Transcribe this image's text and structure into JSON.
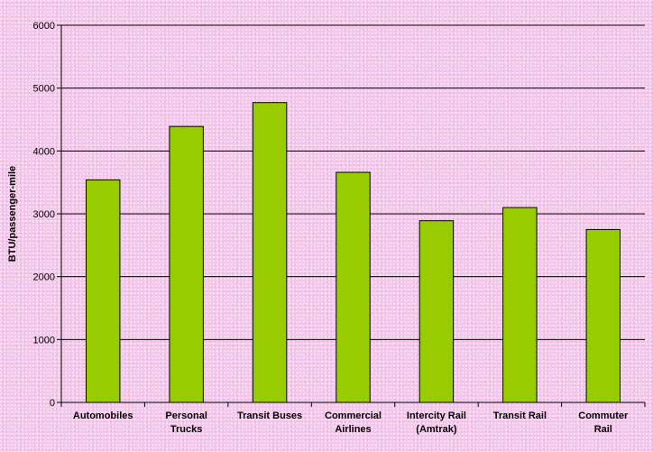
{
  "chart_data": {
    "type": "bar",
    "categories": [
      [
        "Automobiles"
      ],
      [
        "Personal",
        "Trucks"
      ],
      [
        "Transit Buses"
      ],
      [
        "Commercial",
        "Airlines"
      ],
      [
        "Intercity Rail",
        "(Amtrak)"
      ],
      [
        "Transit Rail"
      ],
      [
        "Commuter",
        "Rail"
      ]
    ],
    "values": [
      3540,
      4390,
      4770,
      3660,
      2890,
      3100,
      2750
    ],
    "title": "",
    "xlabel": "",
    "ylabel": "BTU/passenger-mile",
    "ylim": [
      0,
      6000
    ],
    "yticks": [
      0,
      1000,
      2000,
      3000,
      4000,
      5000,
      6000
    ],
    "grid": true,
    "legend": "none",
    "colors": {
      "bar_fill": "#99cc00",
      "bar_stroke": "#000000",
      "grid": "#000000",
      "background": "#f7c6ec"
    }
  }
}
